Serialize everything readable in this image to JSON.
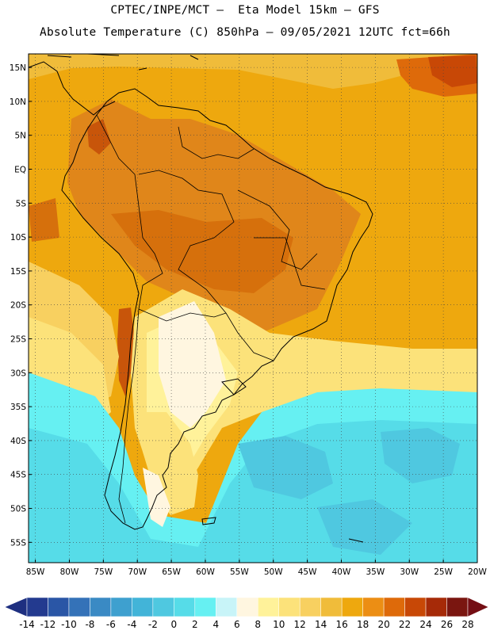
{
  "title": {
    "line1": "CPTEC/INPE/MCT –  Eta Model 15km – GFS",
    "line2": "Absolute Temperature (C) 850hPa – 09/05/2021 12UTC fct=66h"
  },
  "axes": {
    "latitude_labels": [
      "15N",
      "10N",
      "5N",
      "EQ",
      "5S",
      "10S",
      "15S",
      "20S",
      "25S",
      "30S",
      "35S",
      "40S",
      "45S",
      "50S",
      "55S"
    ],
    "latitude_values": [
      15,
      10,
      5,
      0,
      -5,
      -10,
      -15,
      -20,
      -25,
      -30,
      -35,
      -40,
      -45,
      -50,
      -55
    ],
    "longitude_labels": [
      "85W",
      "80W",
      "75W",
      "70W",
      "65W",
      "60W",
      "55W",
      "50W",
      "45W",
      "40W",
      "35W",
      "30W",
      "25W",
      "20W"
    ],
    "longitude_values": [
      -85,
      -80,
      -75,
      -70,
      -65,
      -60,
      -55,
      -50,
      -45,
      -40,
      -35,
      -30,
      -25,
      -20
    ],
    "lat_range": [
      -58,
      17
    ],
    "lon_range": [
      -86,
      -20
    ],
    "grid": "dotted"
  },
  "colorbar": {
    "labels": [
      "-14",
      "-12",
      "-10",
      "-8",
      "-6",
      "-4",
      "-2",
      "0",
      "2",
      "4",
      "6",
      "8",
      "10",
      "12",
      "14",
      "16",
      "18",
      "20",
      "22",
      "24",
      "26",
      "28"
    ],
    "colors": [
      "#233a8f",
      "#2a56a6",
      "#3472b8",
      "#3a8ac4",
      "#3ea0cf",
      "#42b4d8",
      "#4fc8e0",
      "#56dce8",
      "#66f0f2",
      "#c8f4f8",
      "#fff6e0",
      "#fff29a",
      "#fce27a",
      "#f8d060",
      "#f0bc3a",
      "#eea80e",
      "#ec8e14",
      "#de6a0a",
      "#c84806",
      "#a62a08",
      "#7a1610"
    ],
    "below_color": "#1e2f80",
    "above_color": "#740e14"
  },
  "field_colors": {
    "ocean_north": "#eea80e",
    "orange_land": "#e0861a",
    "red_hot": "#c8550a",
    "yellow": "#f8d060",
    "light_yellow": "#fce27a",
    "cream": "#fff6e0",
    "cyan_light": "#66f0f2",
    "cyan": "#56dce8",
    "cyan_dark": "#4fc8e0"
  }
}
